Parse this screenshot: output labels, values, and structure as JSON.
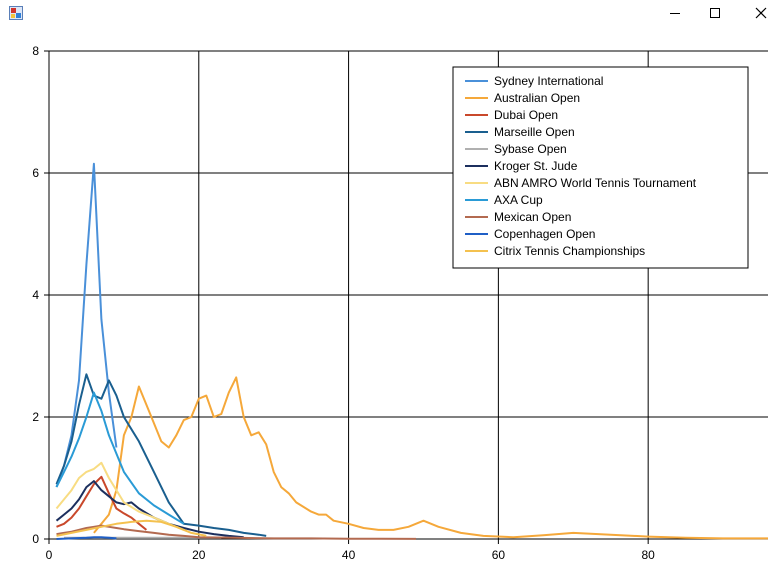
{
  "window": {
    "icon": "app-window-icon",
    "controls": [
      "minimize-icon",
      "maximize-icon",
      "close-icon"
    ]
  },
  "chart_data": {
    "type": "line",
    "title": "",
    "xlabel": "",
    "ylabel": "",
    "xlim": [
      0,
      96
    ],
    "ylim": [
      0,
      8
    ],
    "xticks": [
      "0",
      "20",
      "40",
      "60",
      "80"
    ],
    "yticks": [
      "0",
      "2",
      "4",
      "6",
      "8"
    ],
    "grid": true,
    "legend_position": "top-right",
    "series": [
      {
        "name": "Sydney International",
        "color": "#4a90d9",
        "points": [
          [
            1,
            0.85
          ],
          [
            2,
            1.2
          ],
          [
            3,
            1.7
          ],
          [
            4,
            2.6
          ],
          [
            5,
            4.5
          ],
          [
            6,
            6.15
          ],
          [
            7,
            3.6
          ],
          [
            8,
            2.4
          ],
          [
            9,
            1.5
          ]
        ]
      },
      {
        "name": "Australian Open",
        "color": "#f5a83a",
        "points": [
          [
            6,
            0.1
          ],
          [
            8,
            0.4
          ],
          [
            9,
            0.8
          ],
          [
            10,
            1.7
          ],
          [
            11,
            2.0
          ],
          [
            12,
            2.5
          ],
          [
            13,
            2.2
          ],
          [
            14,
            1.9
          ],
          [
            15,
            1.6
          ],
          [
            16,
            1.5
          ],
          [
            17,
            1.7
          ],
          [
            18,
            1.95
          ],
          [
            19,
            2.0
          ],
          [
            20,
            2.3
          ],
          [
            21,
            2.35
          ],
          [
            22,
            2.0
          ],
          [
            23,
            2.05
          ],
          [
            24,
            2.4
          ],
          [
            25,
            2.65
          ],
          [
            26,
            2.0
          ],
          [
            27,
            1.7
          ],
          [
            28,
            1.75
          ],
          [
            29,
            1.55
          ],
          [
            30,
            1.1
          ],
          [
            31,
            0.85
          ],
          [
            32,
            0.75
          ],
          [
            33,
            0.6
          ],
          [
            35,
            0.45
          ],
          [
            36,
            0.4
          ],
          [
            37,
            0.4
          ],
          [
            38,
            0.3
          ],
          [
            40,
            0.25
          ],
          [
            42,
            0.18
          ],
          [
            44,
            0.15
          ],
          [
            46,
            0.15
          ],
          [
            48,
            0.2
          ],
          [
            50,
            0.3
          ],
          [
            52,
            0.2
          ],
          [
            55,
            0.1
          ],
          [
            58,
            0.05
          ],
          [
            62,
            0.03
          ],
          [
            66,
            0.06
          ],
          [
            70,
            0.1
          ],
          [
            75,
            0.07
          ],
          [
            80,
            0.04
          ],
          [
            85,
            0.02
          ],
          [
            90,
            0.01
          ],
          [
            96,
            0.01
          ]
        ]
      },
      {
        "name": "Dubai Open",
        "color": "#c9482b",
        "points": [
          [
            1,
            0.2
          ],
          [
            2,
            0.25
          ],
          [
            3,
            0.35
          ],
          [
            4,
            0.5
          ],
          [
            5,
            0.7
          ],
          [
            6,
            0.9
          ],
          [
            7,
            1.02
          ],
          [
            8,
            0.75
          ],
          [
            9,
            0.5
          ],
          [
            10,
            0.42
          ],
          [
            11,
            0.35
          ],
          [
            12,
            0.25
          ],
          [
            13,
            0.15
          ]
        ]
      },
      {
        "name": "Marseille Open",
        "color": "#1a5f8f",
        "points": [
          [
            1,
            0.9
          ],
          [
            2,
            1.2
          ],
          [
            3,
            1.6
          ],
          [
            4,
            2.2
          ],
          [
            5,
            2.7
          ],
          [
            6,
            2.35
          ],
          [
            7,
            2.3
          ],
          [
            8,
            2.6
          ],
          [
            9,
            2.35
          ],
          [
            10,
            2.0
          ],
          [
            12,
            1.6
          ],
          [
            14,
            1.1
          ],
          [
            16,
            0.6
          ],
          [
            18,
            0.25
          ],
          [
            20,
            0.22
          ],
          [
            22,
            0.18
          ],
          [
            24,
            0.15
          ],
          [
            26,
            0.1
          ],
          [
            28,
            0.07
          ],
          [
            29,
            0.05
          ]
        ]
      },
      {
        "name": "Sybase Open",
        "color": "#b0b0b0",
        "points": [
          [
            2,
            0.02
          ],
          [
            5,
            0.02
          ],
          [
            8,
            0.02
          ],
          [
            11,
            0.02
          ],
          [
            14,
            0.02
          ],
          [
            17,
            0.02
          ],
          [
            20,
            0.02
          ],
          [
            23,
            0.02
          ]
        ]
      },
      {
        "name": "Kroger St. Jude",
        "color": "#1c2f5e",
        "points": [
          [
            1,
            0.3
          ],
          [
            2,
            0.4
          ],
          [
            3,
            0.5
          ],
          [
            4,
            0.65
          ],
          [
            5,
            0.85
          ],
          [
            6,
            0.95
          ],
          [
            7,
            0.8
          ],
          [
            8,
            0.7
          ],
          [
            9,
            0.6
          ],
          [
            10,
            0.57
          ],
          [
            11,
            0.6
          ],
          [
            12,
            0.5
          ],
          [
            14,
            0.35
          ],
          [
            16,
            0.25
          ],
          [
            18,
            0.18
          ],
          [
            20,
            0.12
          ],
          [
            22,
            0.08
          ],
          [
            24,
            0.05
          ],
          [
            26,
            0.03
          ]
        ]
      },
      {
        "name": "ABN AMRO World Tennis Tournament",
        "color": "#f8dc82",
        "points": [
          [
            1,
            0.5
          ],
          [
            2,
            0.65
          ],
          [
            3,
            0.8
          ],
          [
            4,
            1.0
          ],
          [
            5,
            1.1
          ],
          [
            6,
            1.15
          ],
          [
            7,
            1.25
          ],
          [
            8,
            1.0
          ],
          [
            9,
            0.8
          ],
          [
            10,
            0.6
          ],
          [
            12,
            0.45
          ],
          [
            14,
            0.35
          ],
          [
            16,
            0.25
          ],
          [
            18,
            0.15
          ]
        ]
      },
      {
        "name": "AXA Cup",
        "color": "#2a9bd6",
        "points": [
          [
            1,
            0.85
          ],
          [
            2,
            1.1
          ],
          [
            3,
            1.35
          ],
          [
            4,
            1.65
          ],
          [
            5,
            2.0
          ],
          [
            6,
            2.4
          ],
          [
            7,
            2.1
          ],
          [
            8,
            1.7
          ],
          [
            9,
            1.4
          ],
          [
            10,
            1.1
          ],
          [
            12,
            0.75
          ],
          [
            14,
            0.55
          ],
          [
            16,
            0.4
          ],
          [
            18,
            0.25
          ]
        ]
      },
      {
        "name": "Mexican Open",
        "color": "#b36a50",
        "points": [
          [
            1,
            0.08
          ],
          [
            2,
            0.1
          ],
          [
            3,
            0.12
          ],
          [
            4,
            0.15
          ],
          [
            5,
            0.18
          ],
          [
            6,
            0.2
          ],
          [
            7,
            0.22
          ],
          [
            8,
            0.2
          ],
          [
            9,
            0.18
          ],
          [
            10,
            0.16
          ],
          [
            12,
            0.13
          ],
          [
            14,
            0.1
          ],
          [
            16,
            0.07
          ],
          [
            18,
            0.05
          ],
          [
            20,
            0.03
          ],
          [
            25,
            0.02
          ],
          [
            30,
            0.01
          ],
          [
            35,
            0.01
          ],
          [
            40,
            0.005
          ],
          [
            49,
            0.002
          ]
        ]
      },
      {
        "name": "Copenhagen Open",
        "color": "#1f5fc6",
        "points": [
          [
            1,
            0.0
          ],
          [
            3,
            0.01
          ],
          [
            5,
            0.02
          ],
          [
            6,
            0.03
          ],
          [
            7,
            0.03
          ],
          [
            8,
            0.02
          ],
          [
            9,
            0.01
          ]
        ]
      },
      {
        "name": "Citrix Tennis Championships",
        "color": "#f4c14f",
        "points": [
          [
            1,
            0.05
          ],
          [
            3,
            0.1
          ],
          [
            5,
            0.15
          ],
          [
            7,
            0.2
          ],
          [
            9,
            0.25
          ],
          [
            11,
            0.28
          ],
          [
            13,
            0.3
          ],
          [
            15,
            0.28
          ],
          [
            17,
            0.2
          ],
          [
            19,
            0.1
          ],
          [
            21,
            0.05
          ]
        ]
      }
    ]
  }
}
